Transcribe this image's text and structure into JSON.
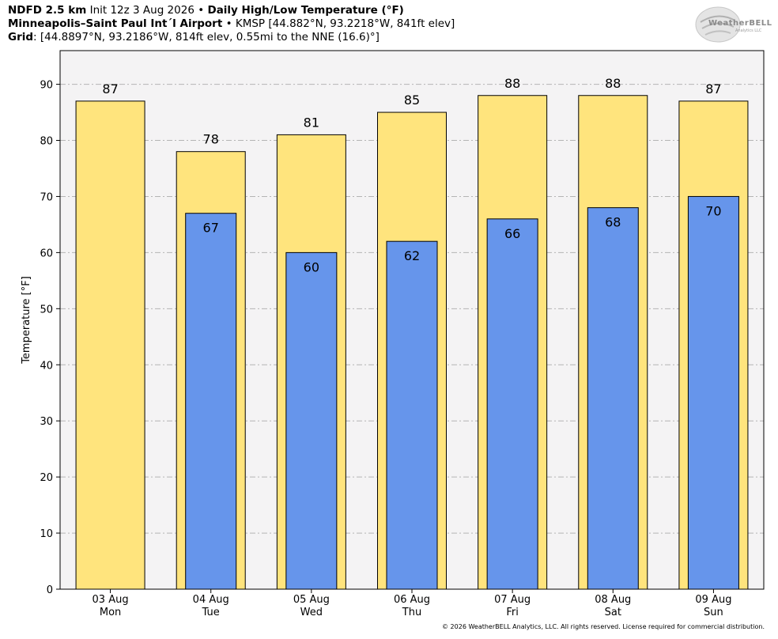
{
  "header": {
    "model": "NDFD 2.5 km",
    "init": "Init 12z 3 Aug 2026",
    "bullet": "•",
    "product": "Daily High/Low Temperature (°F)",
    "station_name": "Minneapolis–Saint Paul Int´l Airport",
    "station_info": "KMSP [44.882°N, 93.2218°W, 841ft elev]",
    "grid_label": "Grid",
    "grid_info": ": [44.8897°N, 93.2186°W, 814ft elev, 0.55mi to the NNE (16.6)°]"
  },
  "logo": {
    "text": "WeatherBELL",
    "sub": "Analytics LLC"
  },
  "footer": {
    "copyright": "© 2026 WeatherBELL Analytics, LLC. All rights reserved. License required for commercial distribution."
  },
  "colors": {
    "high": "#FFE47D",
    "low": "#6695EB",
    "plot_bg": "#F4F3F4",
    "grid": "#B4B4B4"
  },
  "chart_data": {
    "type": "bar",
    "ylabel": "Temperature [°F]",
    "ylim": [
      0,
      96
    ],
    "yticks": [
      0,
      10,
      20,
      30,
      40,
      50,
      60,
      70,
      80,
      90
    ],
    "grid": true,
    "categories": [
      {
        "date": "03 Aug",
        "day": "Mon"
      },
      {
        "date": "04 Aug",
        "day": "Tue"
      },
      {
        "date": "05 Aug",
        "day": "Wed"
      },
      {
        "date": "06 Aug",
        "day": "Thu"
      },
      {
        "date": "07 Aug",
        "day": "Fri"
      },
      {
        "date": "08 Aug",
        "day": "Sat"
      },
      {
        "date": "09 Aug",
        "day": "Sun"
      }
    ],
    "series": [
      {
        "key": "high",
        "values": [
          87,
          78,
          81,
          85,
          88,
          88,
          87
        ]
      },
      {
        "key": "low",
        "values": [
          null,
          67,
          60,
          62,
          66,
          68,
          70
        ]
      }
    ]
  }
}
